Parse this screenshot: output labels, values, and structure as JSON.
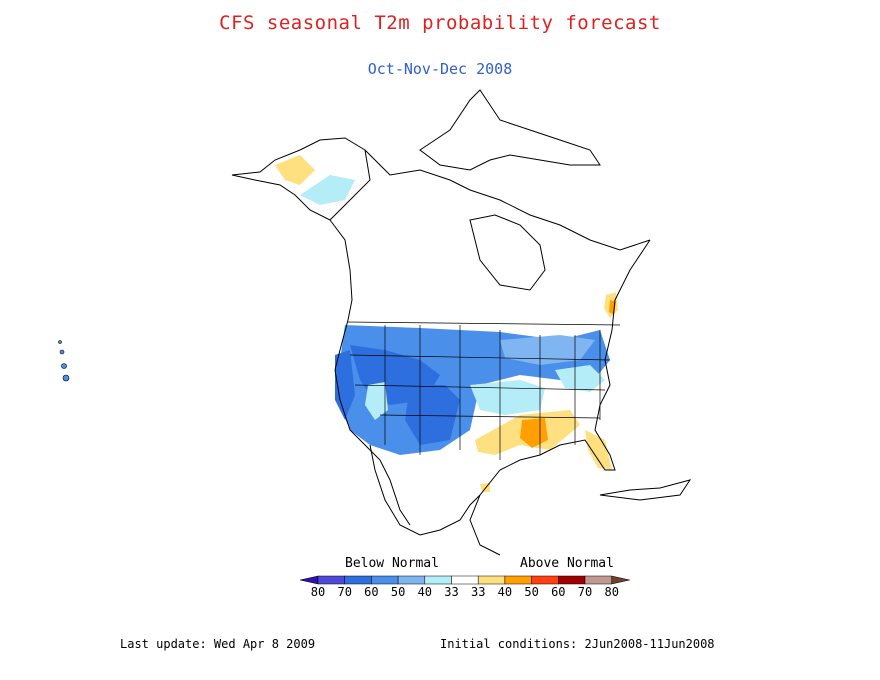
{
  "title": "CFS seasonal T2m probability forecast",
  "subtitle": "Oct-Nov-Dec 2008",
  "legend": {
    "below_label": "Below Normal",
    "above_label": "Above Normal",
    "bins": [
      {
        "label": "80",
        "color": "#3010b0"
      },
      {
        "label": "70",
        "color": "#5048d8"
      },
      {
        "label": "60",
        "color": "#2e6fe0"
      },
      {
        "label": "50",
        "color": "#4a90ea"
      },
      {
        "label": "40",
        "color": "#7fb6f2"
      },
      {
        "label": "33",
        "color": "#b4ecf8"
      },
      {
        "label": "33",
        "color": "#ffffff"
      },
      {
        "label": "40",
        "color": "#ffe080"
      },
      {
        "label": "50",
        "color": "#ffa000"
      },
      {
        "label": "60",
        "color": "#ff4010"
      },
      {
        "label": "70",
        "color": "#a00000"
      },
      {
        "label": "80",
        "color": "#c09890"
      },
      {
        "label": "",
        "color": "#704030"
      }
    ]
  },
  "footer": {
    "last_update": "Last update: Wed Apr 8 2009",
    "initial_conditions": "Initial conditions: 2Jun2008-11Jun2008"
  }
}
